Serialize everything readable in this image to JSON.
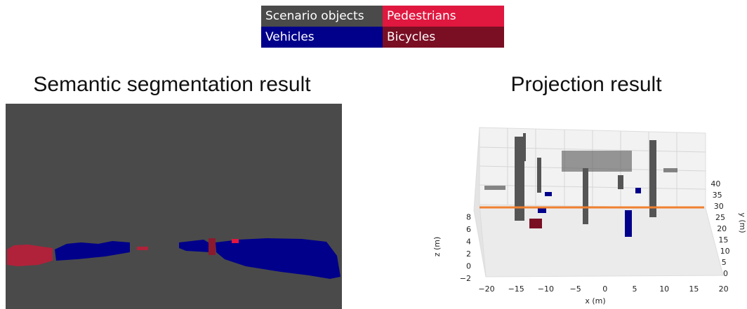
{
  "legend": [
    {
      "label": "Scenario objects",
      "color": "#4a4a4a"
    },
    {
      "label": "Pedestrians",
      "color": "#e0173f"
    },
    {
      "label": "Vehicles",
      "color": "#00008b"
    },
    {
      "label": "Bicycles",
      "color": "#7a0f24"
    }
  ],
  "left_panel": {
    "title": "Semantic segmentation result"
  },
  "right_panel": {
    "title": "Projection result",
    "x_label": "x (m)",
    "y_label": "y (m)",
    "z_label": "z (m)",
    "x_ticks": [
      "−20",
      "−15",
      "−10",
      "−5",
      "0",
      "5",
      "10",
      "15",
      "20"
    ],
    "y_ticks": [
      "0",
      "5",
      "10",
      "15",
      "20",
      "25",
      "30",
      "35",
      "40"
    ],
    "z_ticks": [
      "−2",
      "0",
      "2",
      "4",
      "6",
      "8"
    ]
  }
}
